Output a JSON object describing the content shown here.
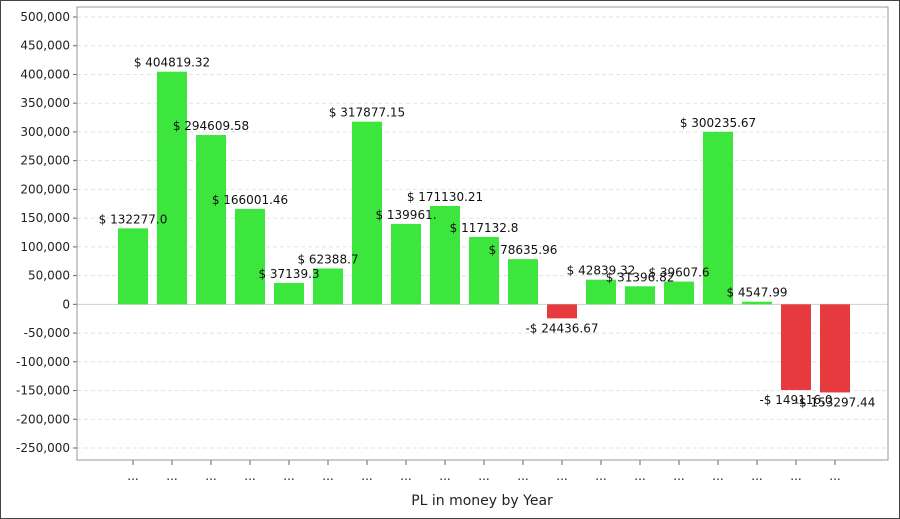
{
  "chart_data": {
    "type": "bar",
    "xlabel": "PL in money by Year",
    "ylim": [
      -250000,
      500000
    ],
    "yticks": [
      500000,
      450000,
      400000,
      350000,
      300000,
      250000,
      200000,
      150000,
      100000,
      50000,
      0,
      -50000,
      -100000,
      -150000,
      -200000,
      -250000
    ],
    "ytick_labels": [
      "500,000",
      "450,000",
      "400,000",
      "350,000",
      "300,000",
      "250,000",
      "200,000",
      "150,000",
      "100,000",
      "50,000",
      "0",
      "-50,000",
      "-100,000",
      "-150,000",
      "-200,000",
      "-250,000"
    ],
    "categories": [
      "...",
      "...",
      "...",
      "...",
      "...",
      "...",
      "...",
      "...",
      "...",
      "...",
      "...",
      "...",
      "...",
      "...",
      "...",
      "...",
      "...",
      "...",
      "..."
    ],
    "values": [
      132277.0,
      404819.32,
      294609.58,
      166001.46,
      37139.3,
      62388.7,
      317877.15,
      139961.0,
      171130.21,
      117132.8,
      78635.96,
      -24436.67,
      42839.32,
      31396.82,
      39607.6,
      300235.67,
      4547.99,
      -149116.0,
      -153297.44
    ],
    "labels": [
      "$ 132277.0",
      "$ 404819.32",
      "$ 294609.58",
      "$ 166001.46",
      "$ 37139.3",
      "$ 62388.7",
      "$ 317877.15",
      "$ 139961.",
      "$ 171130.21",
      "$ 117132.8",
      "$ 78635.96",
      "-$ 24436.67",
      "$ 42839.32",
      "$ 31396.82",
      "$ 39607.6",
      "$ 300235.67",
      "$ 4547.99",
      "-$ 149116.0",
      "-$ 153297.44"
    ],
    "grid": true,
    "colors": {
      "positive": "#3de63d",
      "negative": "#e63a3f"
    }
  }
}
